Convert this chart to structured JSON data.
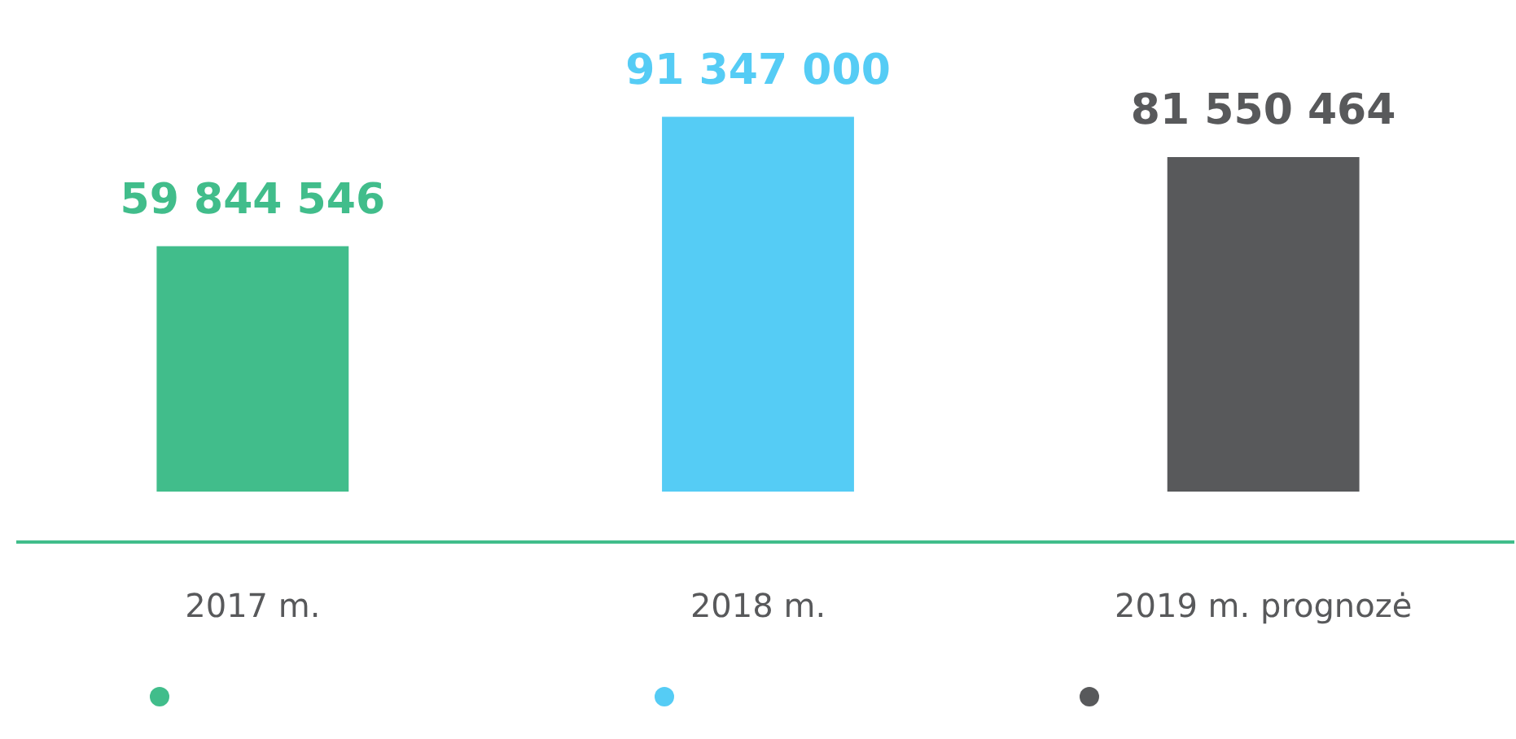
{
  "chart_data": {
    "type": "bar",
    "categories": [
      "2017 m.",
      "2018 m.",
      "2019 m. prognozė"
    ],
    "values": [
      59844546,
      91347000,
      81550464
    ],
    "colors": [
      "#41bd8b",
      "#55ccf5",
      "#58595b"
    ],
    "data_labels": true,
    "tick_labels": "x",
    "grid": false
  }
}
